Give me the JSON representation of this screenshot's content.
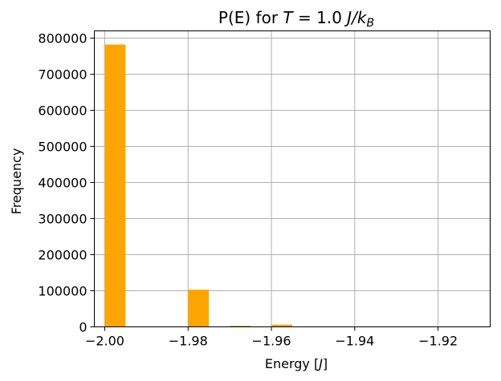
{
  "chart_data": {
    "type": "bar",
    "title": "P(E) for T = 1.0   J/k_B",
    "title_parts": {
      "prefix": "P(E) for ",
      "var": "T",
      "eq": " = 1.0",
      "unit_main": "J/k",
      "unit_sub": "B"
    },
    "xlabel": "Energy [J]",
    "xlabel_parts": {
      "prefix": "Energy [",
      "var": "J",
      "suffix": "]"
    },
    "ylabel": "Frequency",
    "xlim": [
      -2.0025,
      -1.9075
    ],
    "ylim": [
      0,
      820000
    ],
    "xticks": [
      -2.0,
      -1.98,
      -1.96,
      -1.94,
      -1.92
    ],
    "xtick_labels": [
      "−2.00",
      "−1.98",
      "−1.96",
      "−1.94",
      "−1.92"
    ],
    "yticks": [
      0,
      100000,
      200000,
      300000,
      400000,
      500000,
      600000,
      700000,
      800000
    ],
    "ytick_labels": [
      "0",
      "100000",
      "200000",
      "300000",
      "400000",
      "500000",
      "600000",
      "700000",
      "800000"
    ],
    "bin_width": 0.005,
    "bars": [
      {
        "x": -2.0,
        "value": 782000
      },
      {
        "x": -1.98,
        "value": 103000
      },
      {
        "x": -1.97,
        "value": 3000
      },
      {
        "x": -1.96,
        "value": 6000
      }
    ],
    "bar_color": "#ffa500",
    "grid": true
  }
}
